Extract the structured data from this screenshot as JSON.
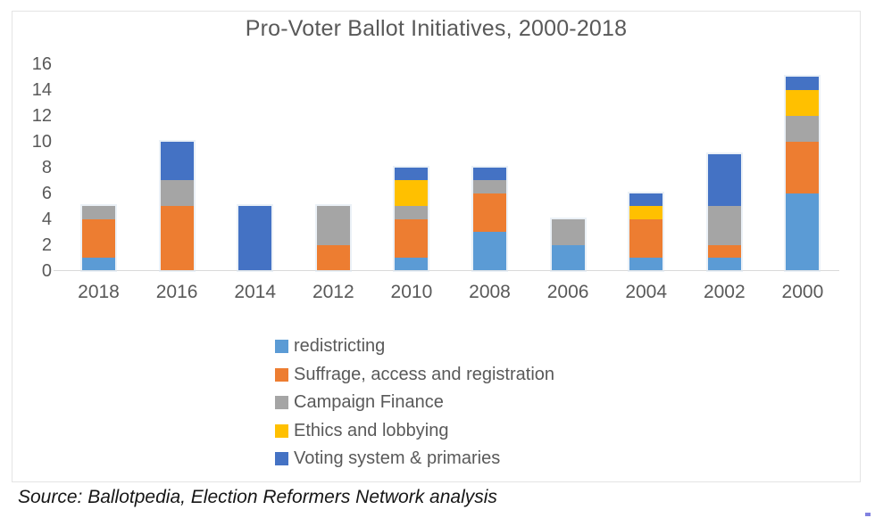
{
  "chart_data": {
    "type": "bar",
    "stacked": true,
    "title": "Pro-Voter Ballot Initiatives, 2000-2018",
    "categories": [
      "2018",
      "2016",
      "2014",
      "2012",
      "2010",
      "2008",
      "2006",
      "2004",
      "2002",
      "2000"
    ],
    "series": [
      {
        "name": "redistricting",
        "color": "#5B9BD5",
        "values": [
          1,
          0,
          0,
          0,
          1,
          3,
          2,
          1,
          1,
          6
        ]
      },
      {
        "name": "Suffrage, access and registration",
        "color": "#ED7D31",
        "values": [
          3,
          5,
          0,
          2,
          3,
          3,
          0,
          3,
          1,
          4
        ]
      },
      {
        "name": "Campaign Finance",
        "color": "#A5A5A5",
        "values": [
          1,
          2,
          0,
          3,
          1,
          1,
          2,
          0,
          3,
          2
        ]
      },
      {
        "name": "Ethics and lobbying",
        "color": "#FFC000",
        "values": [
          0,
          0,
          0,
          0,
          2,
          0,
          0,
          1,
          0,
          2
        ]
      },
      {
        "name": "Voting system & primaries",
        "color": "#4472C4",
        "values": [
          0,
          3,
          5,
          0,
          1,
          1,
          0,
          1,
          4,
          1
        ]
      }
    ],
    "totals": [
      5,
      10,
      5,
      5,
      8,
      8,
      4,
      6,
      9,
      15
    ],
    "yticks": [
      0,
      2,
      4,
      6,
      8,
      10,
      12,
      14,
      16
    ],
    "ylim": [
      0,
      16
    ],
    "grid": false,
    "legend_position": "bottom-left-indented",
    "xlabel": "",
    "ylabel": ""
  },
  "style": {
    "text_color": "#595959",
    "axis_line_color": "#d9d9d9",
    "frame_border_color": "#e4e4e4",
    "background_color": "#ffffff",
    "artifact_color": "#6262d8"
  },
  "source_note": "Source: Ballotpedia, Election Reformers Network analysis"
}
